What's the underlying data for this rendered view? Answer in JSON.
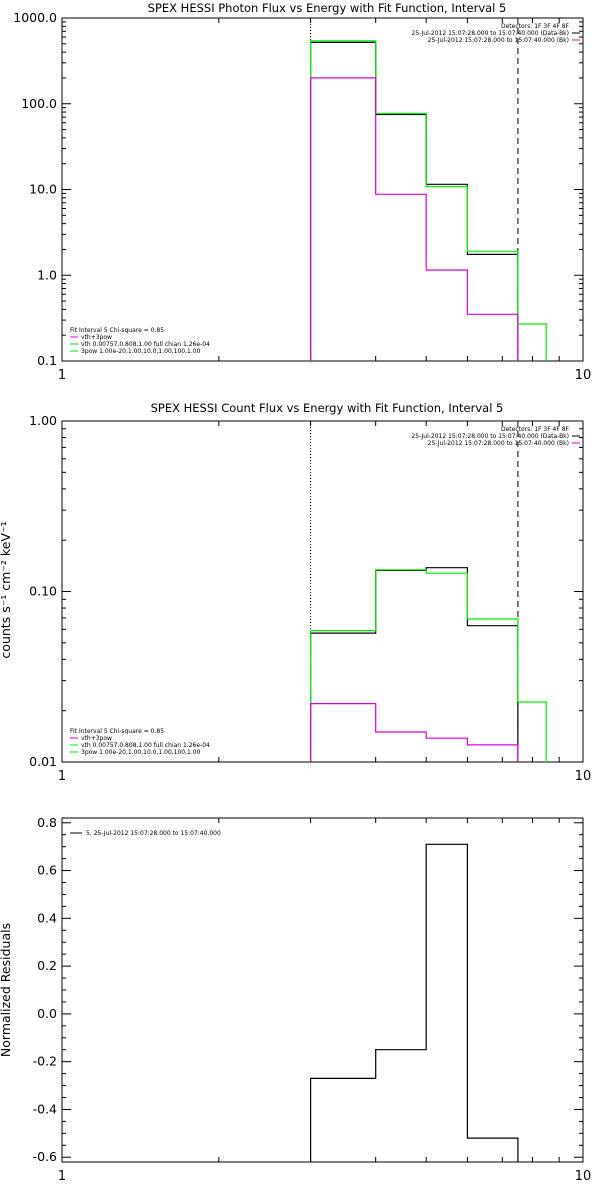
{
  "colors": {
    "black": "#000000",
    "green": "#00ee00",
    "magenta": "#dd00dd"
  },
  "chart_data": [
    {
      "type": "line",
      "step": true,
      "title": "SPEX HESSI Photon Flux vs Energy with Fit Function, Interval 5",
      "xlabel": "",
      "ylabel": "",
      "xscale": "log",
      "yscale": "log",
      "xlim": [
        1,
        10
      ],
      "ylim": [
        0.1,
        1000
      ],
      "xticks": [
        1,
        10
      ],
      "xtick_labels": [
        "1",
        "10"
      ],
      "yticks": [
        0.1,
        1,
        10,
        100,
        1000
      ],
      "ytick_labels": [
        "0.1",
        "1.0",
        "10.0",
        "100.0",
        "1000.0"
      ],
      "vlines": [
        {
          "x": 3,
          "style": "dotted"
        },
        {
          "x": 7.5,
          "style": "dashed"
        }
      ],
      "header": {
        "lines": [
          {
            "text": "Detectors: 1F 3F 4F 8F",
            "color": ""
          },
          {
            "text": "25-Jul-2012 15:07:28.000 to 15:07:40.000 (Data-Bk)",
            "color": "black"
          },
          {
            "text": "25-Jul-2012 15:07:28.000 to 15:07:40.000 (Bk)",
            "color": "magenta"
          }
        ]
      },
      "fit_legend": {
        "lines": [
          {
            "text": "Fit Interval 5   Chi-square = 0.85",
            "color": ""
          },
          {
            "text": "vth+3pow",
            "color": "magenta"
          },
          {
            "text": "vth 0.00757,0.808,1.00   full chian 1.26e-04",
            "color": "green"
          },
          {
            "text": "3pow 1.00e-20,1.00,10.0,1.00,100,1.00",
            "color": "green"
          }
        ]
      },
      "series": [
        {
          "color": "black",
          "edges": [
            3,
            4,
            5,
            6,
            7.5
          ],
          "values": [
            520,
            75,
            11.5,
            1.75
          ]
        },
        {
          "color": "green",
          "edges": [
            3,
            4,
            5,
            6,
            7.5,
            8.5
          ],
          "values": [
            540,
            77,
            10.8,
            1.9,
            0.27
          ]
        },
        {
          "color": "magenta",
          "edges": [
            3,
            4,
            5,
            6,
            7.5
          ],
          "values": [
            200,
            8.8,
            1.15,
            0.35
          ]
        }
      ]
    },
    {
      "type": "line",
      "step": true,
      "title": "SPEX HESSI Count Flux vs Energy with Fit Function, Interval 5",
      "xlabel": "",
      "ylabel": "counts s⁻¹ cm⁻² keV⁻¹",
      "xscale": "log",
      "yscale": "log",
      "xlim": [
        1,
        10
      ],
      "ylim": [
        0.01,
        1
      ],
      "xticks": [
        1,
        10
      ],
      "xtick_labels": [
        "1",
        "10"
      ],
      "yticks": [
        0.01,
        0.1,
        1
      ],
      "ytick_labels": [
        "0.01",
        "0.10",
        "1.00"
      ],
      "vlines": [
        {
          "x": 3,
          "style": "dotted"
        },
        {
          "x": 7.5,
          "style": "dashed"
        }
      ],
      "header": {
        "lines": [
          {
            "text": "Detectors: 1F 3F 4F 8F",
            "color": ""
          },
          {
            "text": "25-Jul-2012 15:07:28.000 to 15:07:40.000 (Data-Bk)",
            "color": "black"
          },
          {
            "text": "25-Jul-2012 15:07:28.000 to 15:07:40.000 (Bk)",
            "color": "magenta"
          }
        ]
      },
      "fit_legend": {
        "lines": [
          {
            "text": "Fit Interval 5   Chi-square = 0.85",
            "color": ""
          },
          {
            "text": "vth+3pow",
            "color": "magenta"
          },
          {
            "text": "vth 0.00757,0.808,1.00   full chian 1.26e-04",
            "color": "green"
          },
          {
            "text": "3pow 1.00e-20,1.00,10.0,1.00,100,1.00",
            "color": "green"
          }
        ]
      },
      "series": [
        {
          "color": "black",
          "edges": [
            3,
            4,
            5,
            6,
            7.5
          ],
          "values": [
            0.057,
            0.133,
            0.138,
            0.063
          ]
        },
        {
          "color": "green",
          "edges": [
            3,
            4,
            5,
            6,
            7.5,
            8.5
          ],
          "values": [
            0.059,
            0.134,
            0.128,
            0.069,
            0.0225
          ]
        },
        {
          "color": "magenta",
          "edges": [
            3,
            4,
            5,
            6,
            7.5
          ],
          "values": [
            0.022,
            0.015,
            0.0138,
            0.0126
          ]
        }
      ]
    },
    {
      "type": "line",
      "step": true,
      "title": "",
      "xlabel": "",
      "ylabel": "Normalized Residuals",
      "xscale": "log",
      "yscale": "linear",
      "xlim": [
        1,
        10
      ],
      "ylim": [
        -0.62,
        0.82
      ],
      "xticks": [
        1,
        10
      ],
      "xtick_labels": [
        "1",
        "10"
      ],
      "yticks": [
        -0.6,
        -0.4,
        -0.2,
        0.0,
        0.2,
        0.4,
        0.6,
        0.8
      ],
      "ytick_labels": [
        "-0.6",
        "-0.4",
        "-0.2",
        "0.0",
        "0.2",
        "0.4",
        "0.6",
        "0.8"
      ],
      "vlines": [],
      "header": {
        "lines": []
      },
      "resid_legend": {
        "text": "5, 25-Jul-2012 15:07:28.000 to 15:07:40.000",
        "color": "black"
      },
      "series": [
        {
          "color": "black",
          "edges": [
            3,
            4,
            5,
            6,
            7.5
          ],
          "values": [
            -0.27,
            -0.15,
            0.71,
            -0.52
          ]
        }
      ]
    }
  ]
}
